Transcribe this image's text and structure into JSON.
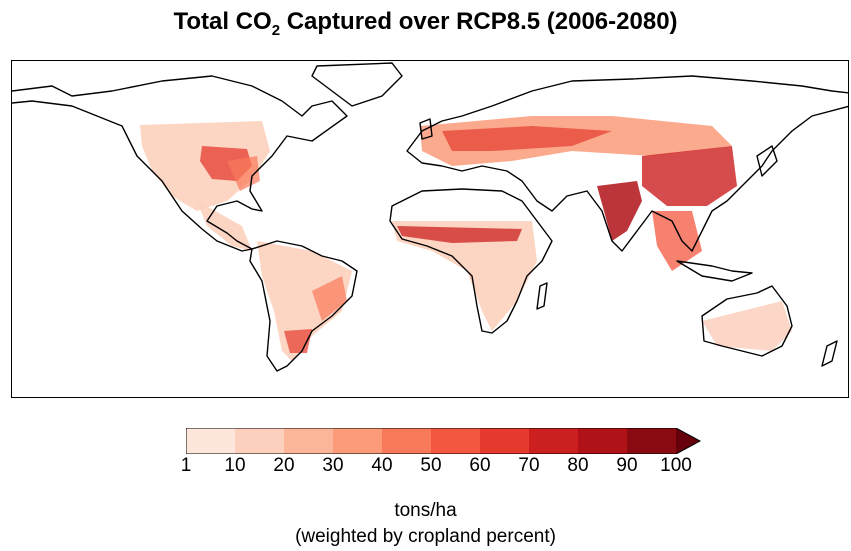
{
  "title": {
    "prefix": "Total CO",
    "subscript": "2",
    "suffix": " Captured over RCP8.5 (2006-2080)"
  },
  "colorbar": {
    "colors": [
      "#fee6dc",
      "#fcd0bd",
      "#fbb69a",
      "#fb9b7a",
      "#f9795b",
      "#f4573f",
      "#e53a2d",
      "#cc1f1f",
      "#b01217",
      "#890a11"
    ],
    "extend_color": "#67000d",
    "ticks": [
      "1",
      "10",
      "20",
      "30",
      "40",
      "50",
      "60",
      "70",
      "80",
      "90",
      "100"
    ],
    "extend": "max"
  },
  "units": {
    "line1": "tons/ha",
    "line2": "(weighted by cropland percent)"
  },
  "map": {
    "projection": "PlateCarree",
    "coastline_color": "#000000",
    "ocean_color": "#ffffff"
  }
}
